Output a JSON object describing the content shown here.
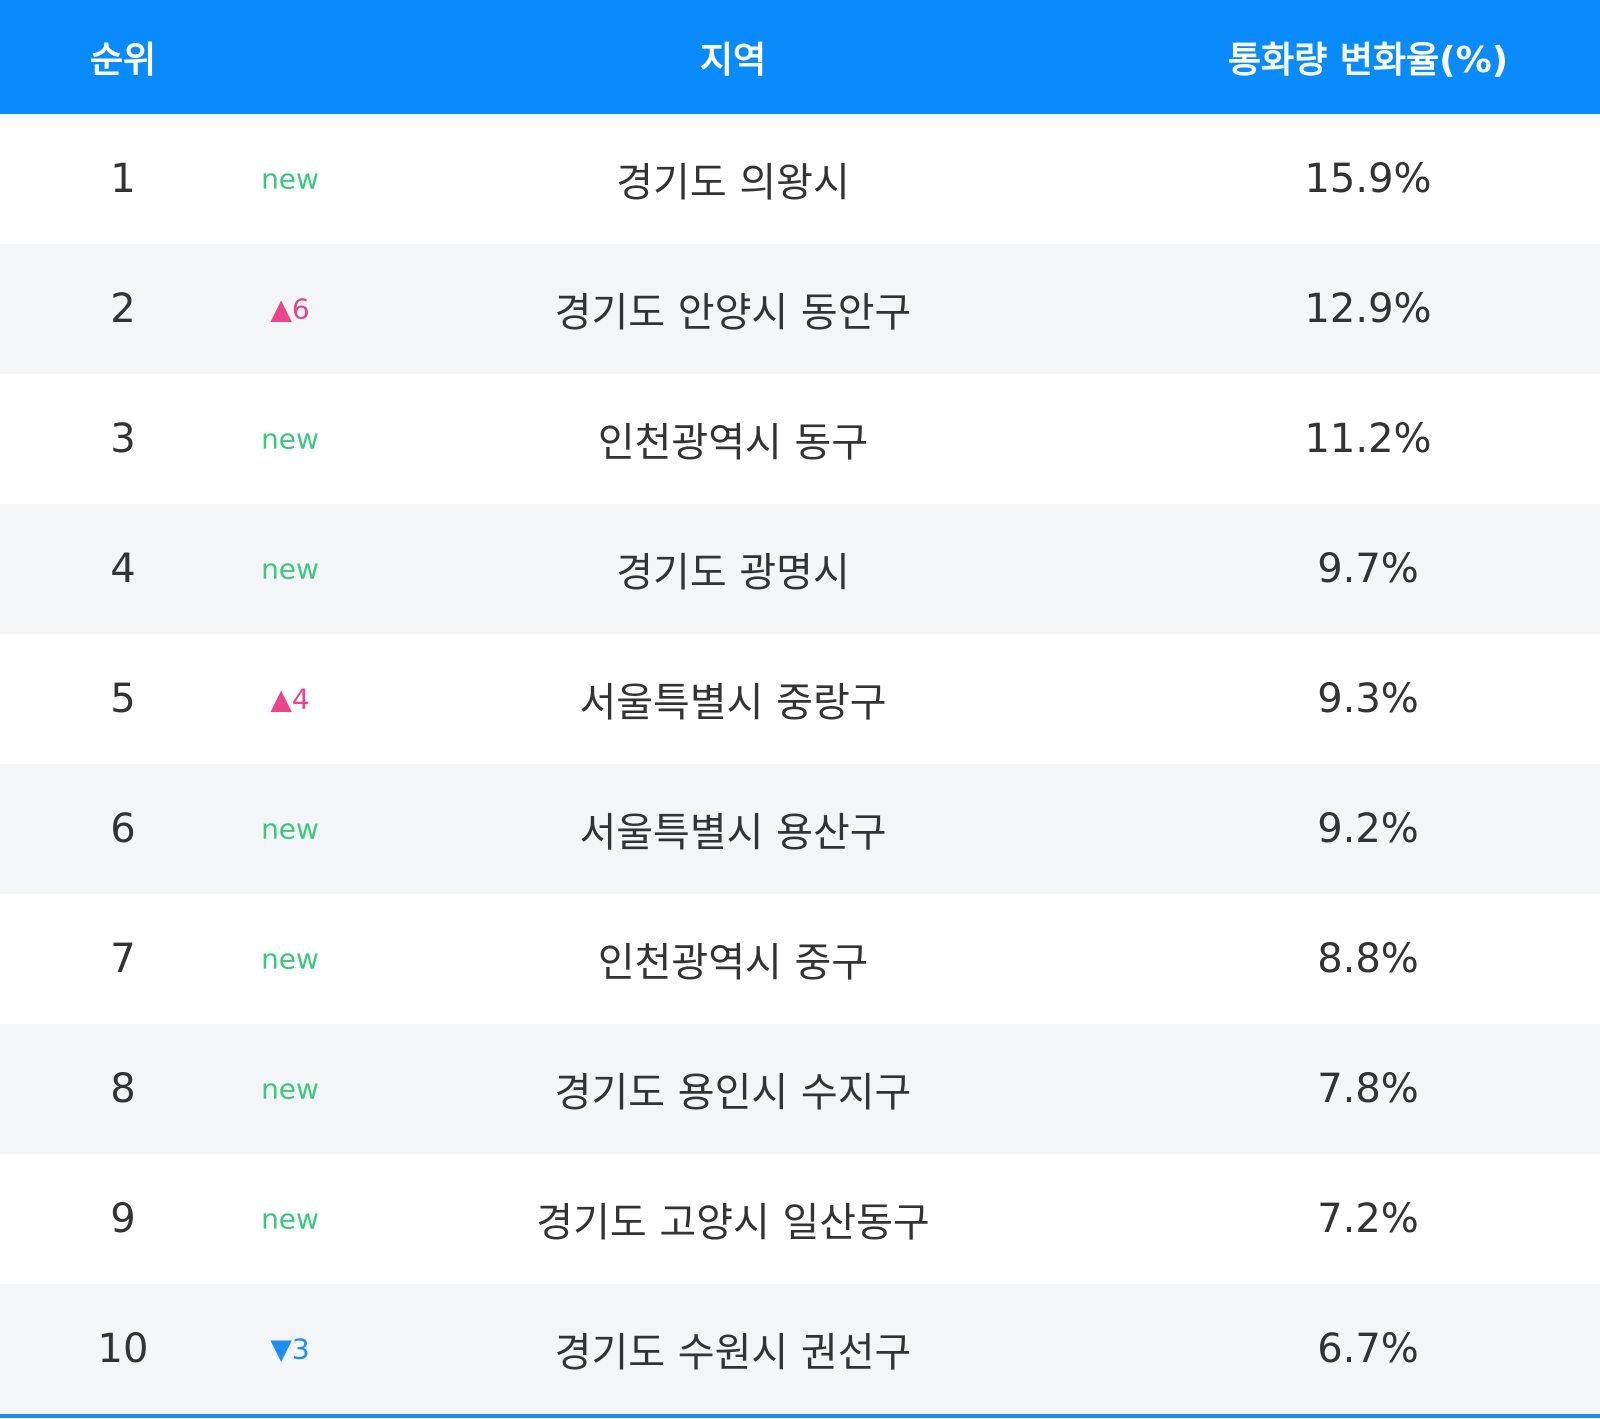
{
  "header": {
    "rank": "순위",
    "region": "지역",
    "rate": "통화량 변화율(%)"
  },
  "rows": [
    {
      "rank": "1",
      "change": "new",
      "region": "경기도 의왕시",
      "rate": "15.9%"
    },
    {
      "rank": "2",
      "change": "▲6",
      "region": "경기도 안양시 동안구",
      "rate": "12.9%"
    },
    {
      "rank": "3",
      "change": "new",
      "region": "인천광역시 동구",
      "rate": "11.2%"
    },
    {
      "rank": "4",
      "change": "new",
      "region": "경기도 광명시",
      "rate": "9.7%"
    },
    {
      "rank": "5",
      "change": "▲4",
      "region": "서울특별시 중랑구",
      "rate": "9.3%"
    },
    {
      "rank": "6",
      "change": "new",
      "region": "서울특별시 용산구",
      "rate": "9.2%"
    },
    {
      "rank": "7",
      "change": "new",
      "region": "인천광역시 중구",
      "rate": "8.8%"
    },
    {
      "rank": "8",
      "change": "new",
      "region": "경기도 용인시 수지구",
      "rate": "7.8%"
    },
    {
      "rank": "9",
      "change": "new",
      "region": "경기도 고양시 일산동구",
      "rate": "7.2%"
    },
    {
      "rank": "10",
      "change": "▼3",
      "region": "경기도 수원시 권선구",
      "rate": "6.7%"
    }
  ]
}
